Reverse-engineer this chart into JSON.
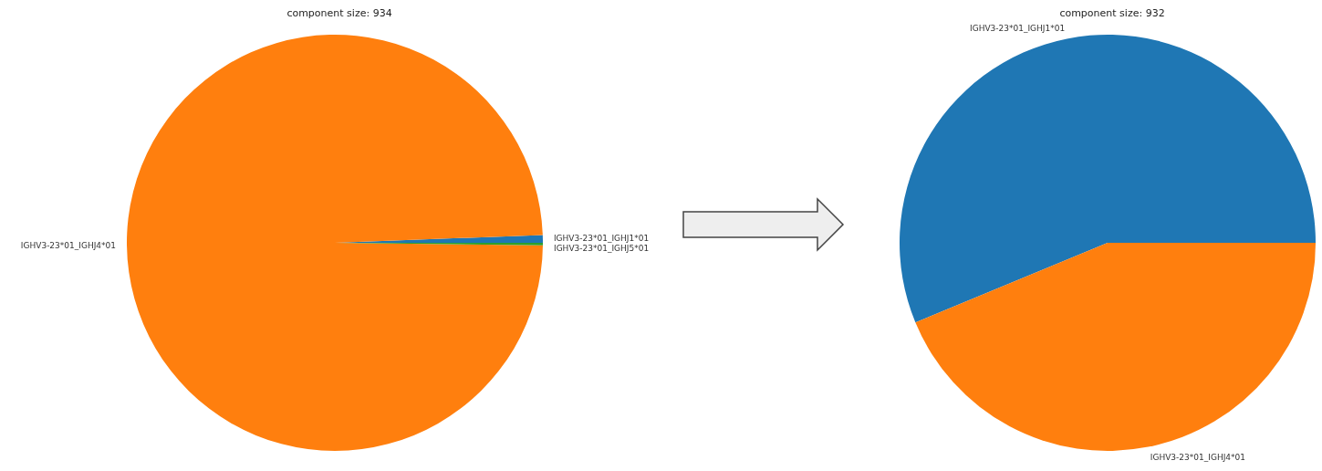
{
  "chart_data": [
    {
      "type": "pie",
      "title": "component size: 934",
      "categories": [
        "IGHV3-23*01_IGHJ1*01",
        "IGHV3-23*01_IGHJ4*01",
        "IGHV3-23*01_IGHJ5*01"
      ],
      "values": [
        0.6,
        99.2,
        0.2
      ],
      "colors": [
        "#1f77b4",
        "#ff7f0e",
        "#2ca02c"
      ]
    },
    {
      "type": "pie",
      "title": "component size: 932",
      "categories": [
        "IGHV3-23*01_IGHJ1*01",
        "IGHV3-23*01_IGHJ4*01"
      ],
      "values": [
        56.25,
        43.75
      ],
      "colors": [
        "#1f77b4",
        "#ff7f0e"
      ]
    }
  ]
}
